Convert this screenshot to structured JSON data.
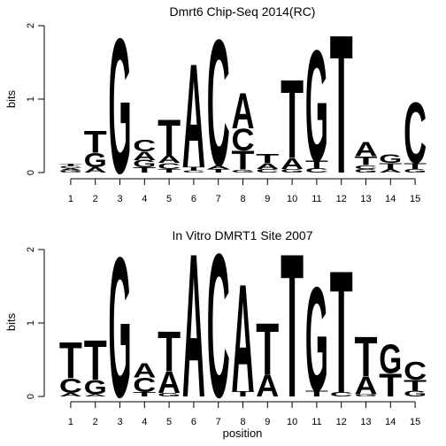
{
  "chart_data": [
    {
      "type": "sequence-logo",
      "title": "Dmrt6 Chip-Seq 2014(RC)",
      "xlabel": "",
      "ylabel": "bits",
      "ylim": [
        0,
        2
      ],
      "yticks": [
        "0",
        "1",
        "2"
      ],
      "xticks": [
        "1",
        "2",
        "3",
        "4",
        "5",
        "6",
        "7",
        "8",
        "9",
        "10",
        "11",
        "12",
        "13",
        "14",
        "15"
      ],
      "columns": [
        [
          [
            "G",
            0.03
          ],
          [
            "A",
            0.03
          ],
          [
            "C",
            0.03
          ],
          [
            "T",
            0.03
          ]
        ],
        [
          [
            "A",
            0.07
          ],
          [
            "G",
            0.2
          ],
          [
            "T",
            0.3
          ]
        ],
        [
          [
            "G",
            1.88
          ]
        ],
        [
          [
            "T",
            0.07
          ],
          [
            "G",
            0.1
          ],
          [
            "A",
            0.12
          ],
          [
            "C",
            0.16
          ]
        ],
        [
          [
            "T",
            0.05
          ],
          [
            "C",
            0.08
          ],
          [
            "A",
            0.1
          ],
          [
            "T",
            0.5
          ]
        ],
        [
          [
            "C",
            0.03
          ],
          [
            "T",
            0.05
          ],
          [
            "A",
            1.44
          ]
        ],
        [
          [
            "T",
            0.05
          ],
          [
            "A",
            0.05
          ],
          [
            "C",
            1.76
          ]
        ],
        [
          [
            "G",
            0.04
          ],
          [
            "T",
            0.26
          ],
          [
            "C",
            0.3
          ],
          [
            "A",
            0.5
          ]
        ],
        [
          [
            "C",
            0.05
          ],
          [
            "A",
            0.08
          ],
          [
            "T",
            0.13
          ]
        ],
        [
          [
            "G",
            0.05
          ],
          [
            "A",
            0.15
          ],
          [
            "T",
            1.1
          ]
        ],
        [
          [
            "C",
            0.06
          ],
          [
            "T",
            0.1
          ],
          [
            "G",
            1.55
          ]
        ],
        [
          [
            "T",
            1.93
          ]
        ],
        [
          [
            "G",
            0.05
          ],
          [
            "C",
            0.05
          ],
          [
            "T",
            0.12
          ],
          [
            "A",
            0.2
          ]
        ],
        [
          [
            "A",
            0.05
          ],
          [
            "T",
            0.08
          ],
          [
            "G",
            0.12
          ]
        ],
        [
          [
            "G",
            0.05
          ],
          [
            "T",
            0.08
          ],
          [
            "C",
            0.85
          ]
        ]
      ]
    },
    {
      "type": "sequence-logo",
      "title": "In Vitro DMRT1 Site 2007",
      "xlabel": "position",
      "ylabel": "bits",
      "ylim": [
        0,
        2
      ],
      "yticks": [
        "0",
        "1",
        "2"
      ],
      "xticks": [
        "1",
        "2",
        "3",
        "4",
        "5",
        "6",
        "7",
        "8",
        "9",
        "10",
        "11",
        "12",
        "13",
        "14",
        "15"
      ],
      "columns": [
        [
          [
            "A",
            0.05
          ],
          [
            "C",
            0.2
          ],
          [
            "T",
            0.5
          ]
        ],
        [
          [
            "A",
            0.03
          ],
          [
            "G",
            0.2
          ],
          [
            "T",
            0.55
          ]
        ],
        [
          [
            "G",
            1.95
          ]
        ],
        [
          [
            "T",
            0.06
          ],
          [
            "C",
            0.2
          ],
          [
            "A",
            0.2
          ]
        ],
        [
          [
            "G",
            0.05
          ],
          [
            "A",
            0.3
          ],
          [
            "T",
            0.55
          ]
        ],
        [
          [
            "A",
            2.0
          ]
        ],
        [
          [
            "C",
            2.0
          ]
        ],
        [
          [
            "T",
            0.07
          ],
          [
            "A",
            1.5
          ]
        ],
        [
          [
            "A",
            0.3
          ],
          [
            "T",
            0.72
          ]
        ],
        [
          [
            "T",
            2.0
          ]
        ],
        [
          [
            "T",
            0.08
          ],
          [
            "G",
            1.45
          ]
        ],
        [
          [
            "C",
            0.06
          ],
          [
            "T",
            1.7
          ]
        ],
        [
          [
            "G",
            0.03
          ],
          [
            "A",
            0.25
          ],
          [
            "T",
            0.55
          ]
        ],
        [
          [
            "T",
            0.32
          ],
          [
            "G",
            0.4
          ]
        ],
        [
          [
            "G",
            0.08
          ],
          [
            "T",
            0.15
          ],
          [
            "C",
            0.25
          ]
        ]
      ]
    }
  ],
  "colors": {
    "A": "#008000",
    "C": "#0000cc",
    "G": "#ffb300",
    "T": "#cc0000"
  }
}
